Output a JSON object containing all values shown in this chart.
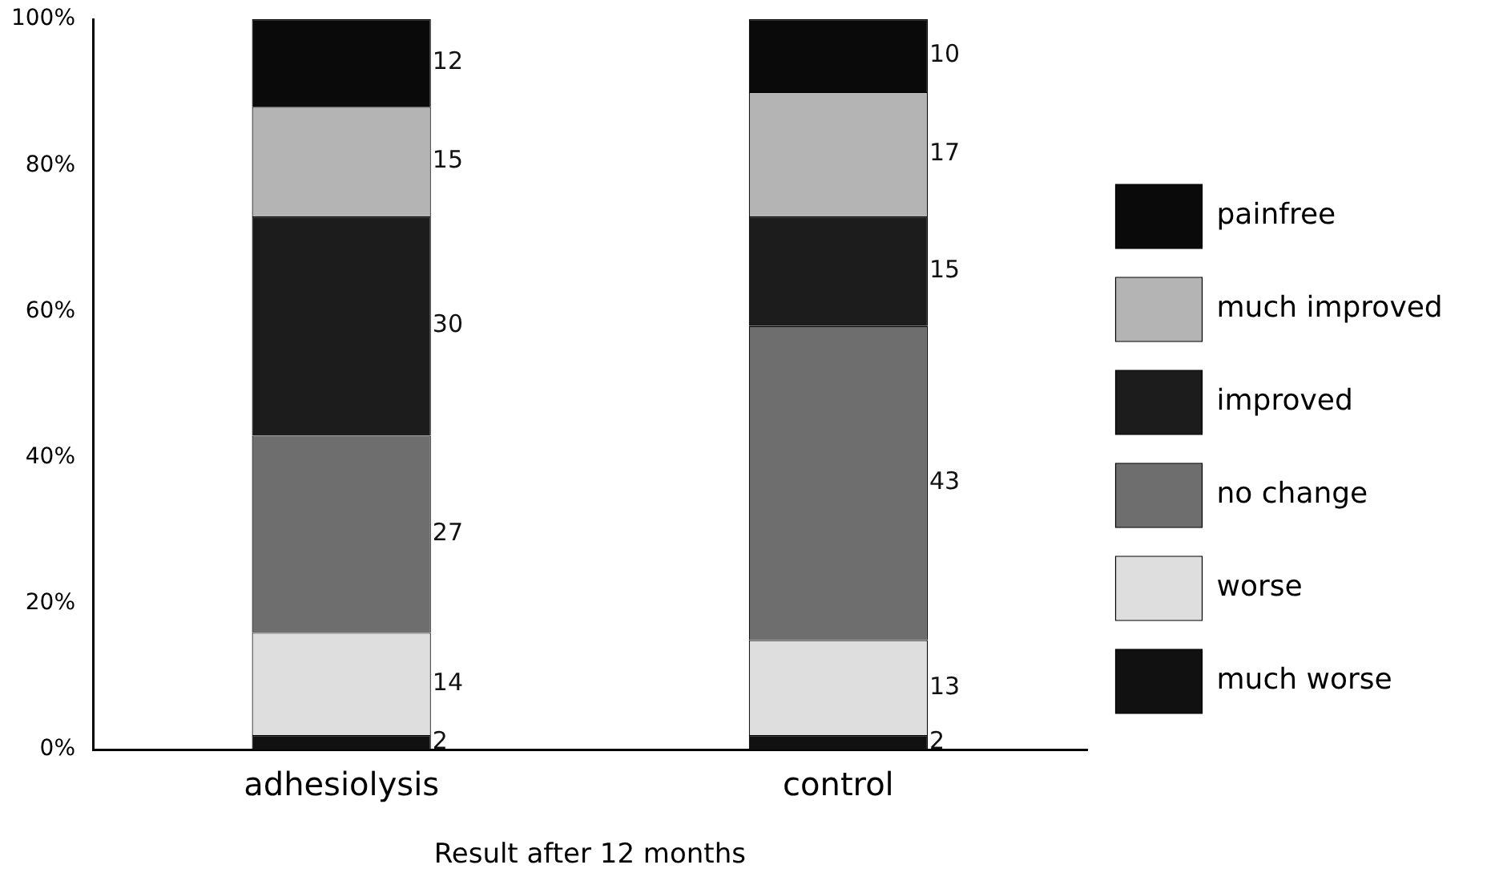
{
  "chart_data": {
    "type": "bar",
    "stacked": true,
    "xlabel": "Result after 12 months",
    "categories": [
      "adhesiolysis",
      "control"
    ],
    "series": [
      {
        "name": "much worse",
        "color": "#111111",
        "values": [
          2,
          2
        ]
      },
      {
        "name": "worse",
        "color": "#dedede",
        "values": [
          14,
          13
        ]
      },
      {
        "name": "no change",
        "color": "#6e6e6e",
        "values": [
          27,
          43
        ]
      },
      {
        "name": "improved",
        "color": "#1c1c1c",
        "values": [
          30,
          15
        ]
      },
      {
        "name": "much improved",
        "color": "#b4b4b4",
        "values": [
          15,
          17
        ]
      },
      {
        "name": "painfree",
        "color": "#0a0a0a",
        "values": [
          12,
          10
        ]
      }
    ],
    "ylim": [
      0,
      100
    ],
    "yticks": [
      {
        "value": 0,
        "label": "0%"
      },
      {
        "value": 20,
        "label": "20%"
      },
      {
        "value": 40,
        "label": "40%"
      },
      {
        "value": 60,
        "label": "60%"
      },
      {
        "value": 80,
        "label": "80%"
      },
      {
        "value": 100,
        "label": "100%"
      }
    ],
    "grid": false,
    "legend": "right",
    "data_labels": true
  }
}
